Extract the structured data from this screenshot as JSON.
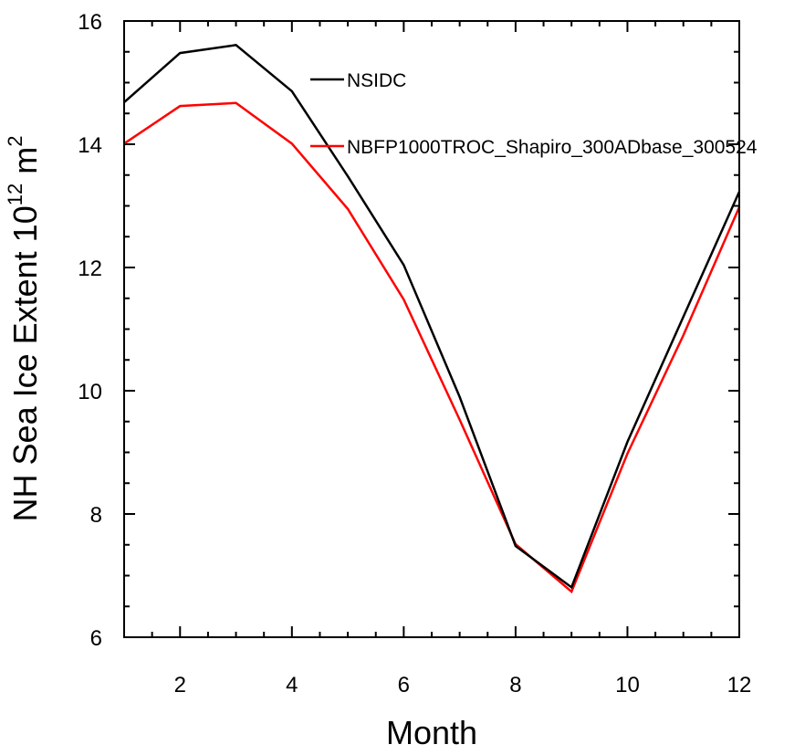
{
  "chart_data": {
    "type": "line",
    "title": "",
    "xlabel": "Month",
    "ylabel": "NH Sea Ice Extent 10",
    "ylabel_exp": "12",
    "ylabel_unit": " m",
    "ylabel_unit_exp": "2",
    "xlim": [
      1,
      12
    ],
    "ylim": [
      6,
      16
    ],
    "xticks": [
      2,
      4,
      6,
      8,
      10,
      12
    ],
    "yticks": [
      6,
      8,
      10,
      12,
      14,
      16
    ],
    "grid": false,
    "legend_position": "top-right-inside",
    "x": [
      1,
      2,
      3,
      4,
      5,
      6,
      7,
      8,
      9,
      10,
      11,
      12
    ],
    "series": [
      {
        "name": "NSIDC",
        "color": "#000000",
        "values": [
          14.68,
          15.48,
          15.61,
          14.86,
          13.48,
          12.04,
          9.9,
          7.48,
          6.81,
          9.17,
          11.2,
          13.23
        ]
      },
      {
        "name": "NBFP1000TROC_Shapiro_300ADbase_300524",
        "color": "#ff0000",
        "values": [
          14.01,
          14.62,
          14.67,
          14.01,
          12.95,
          11.48,
          9.53,
          7.51,
          6.74,
          8.98,
          10.9,
          12.98
        ]
      }
    ]
  }
}
